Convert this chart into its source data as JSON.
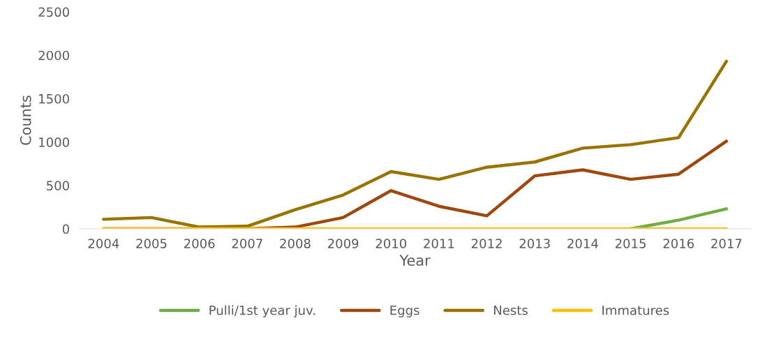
{
  "chart_data": {
    "type": "line",
    "xlabel": "Year",
    "ylabel": "Counts",
    "categories": [
      "2004",
      "2005",
      "2006",
      "2007",
      "2008",
      "2009",
      "2010",
      "2011",
      "2012",
      "2013",
      "2014",
      "2015",
      "2016",
      "2017"
    ],
    "series": [
      {
        "name": "Pulli/1st year juv.",
        "color": "#70ad47",
        "values": [
          null,
          null,
          null,
          null,
          null,
          null,
          null,
          null,
          null,
          null,
          null,
          0,
          100,
          230
        ]
      },
      {
        "name": "Eggs",
        "color": "#9e480e",
        "values": [
          0,
          0,
          0,
          0,
          20,
          130,
          440,
          260,
          150,
          610,
          680,
          570,
          630,
          1010
        ]
      },
      {
        "name": "Nests",
        "color": "#997300",
        "values": [
          110,
          130,
          20,
          30,
          220,
          390,
          660,
          570,
          710,
          770,
          930,
          970,
          1050,
          1930
        ]
      },
      {
        "name": "Immatures",
        "color": "#ffc000",
        "values": [
          0,
          0,
          0,
          0,
          0,
          0,
          0,
          0,
          0,
          0,
          0,
          0,
          0,
          0
        ]
      }
    ],
    "ylim": [
      0,
      2500
    ],
    "yticks": [
      0,
      500,
      1000,
      1500,
      2000,
      2500
    ],
    "grid": false,
    "legend": "bottom",
    "marker": "none",
    "line_style": "solid"
  }
}
